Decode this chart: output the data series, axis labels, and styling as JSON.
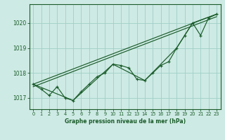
{
  "title": "Graphe pression niveau de la mer (hPa)",
  "bg_color": "#ceeae4",
  "grid_color": "#9ecfc7",
  "line_color": "#1a5c2a",
  "tick_label_color": "#1a5c2a",
  "ylim": [
    1016.55,
    1020.75
  ],
  "xlim": [
    -0.5,
    23.5
  ],
  "yticks": [
    1017,
    1018,
    1019,
    1020
  ],
  "xticks": [
    0,
    1,
    2,
    3,
    4,
    5,
    6,
    7,
    8,
    9,
    10,
    11,
    12,
    13,
    14,
    15,
    16,
    17,
    18,
    19,
    20,
    21,
    22,
    23
  ],
  "main_x": [
    0,
    1,
    2,
    3,
    4,
    5,
    6,
    7,
    8,
    9,
    10,
    11,
    12,
    13,
    14,
    15,
    16,
    17,
    18,
    19,
    20,
    21,
    22,
    23
  ],
  "main_y": [
    1017.55,
    1017.35,
    1017.1,
    1017.45,
    1017.0,
    1016.9,
    1017.25,
    1017.55,
    1017.85,
    1018.0,
    1018.35,
    1018.3,
    1018.2,
    1017.75,
    1017.7,
    1018.0,
    1018.3,
    1018.45,
    1019.0,
    1019.5,
    1020.0,
    1019.5,
    1020.2,
    1020.35
  ],
  "line2_x": [
    0,
    23
  ],
  "line2_y": [
    1017.55,
    1020.35
  ],
  "line3_x": [
    0,
    23
  ],
  "line3_y": [
    1017.45,
    1020.25
  ],
  "line4_x": [
    0,
    5,
    10,
    14,
    18,
    20,
    23
  ],
  "line4_y": [
    1017.55,
    1016.9,
    1018.35,
    1017.7,
    1019.0,
    1020.0,
    1020.35
  ]
}
